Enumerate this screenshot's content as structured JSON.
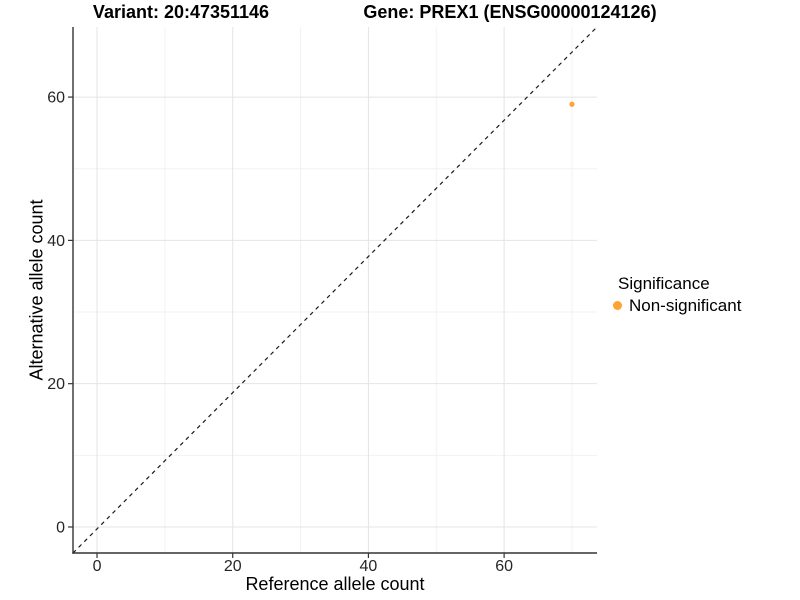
{
  "header": {
    "title_variant": "Variant: 20:47351146",
    "title_gene": "Gene: PREX1 (ENSG00000124126)"
  },
  "legend": {
    "title": "Significance",
    "items": [
      {
        "label": "Non-significant",
        "color": "#FFA333"
      }
    ]
  },
  "colors": {
    "background": "#FFFFFF",
    "grid_major": "#E4E4E4",
    "grid_minor": "#F2F2F2",
    "axis_line": "#333333",
    "tick_text": "#262626",
    "point_orange": "#FFA333",
    "reference_line": "#1A1A1A"
  },
  "chart_data": {
    "type": "scatter",
    "title_left": "Variant: 20:47351146",
    "title_right": "Gene: PREX1 (ENSG00000124126)",
    "xlabel": "Reference allele count",
    "ylabel": "Alternative allele count",
    "xlim": [
      -3.54,
      73.69
    ],
    "ylim": [
      -3.63,
      69.78
    ],
    "x_major_ticks": [
      0,
      20,
      40,
      60
    ],
    "x_minor_gridlines": [
      10,
      30,
      50,
      70
    ],
    "y_major_ticks": [
      0,
      20,
      40,
      60
    ],
    "y_minor_gridlines": [
      10,
      30,
      50
    ],
    "grid": "major+minor",
    "legend_position": "right",
    "series": [
      {
        "name": "Non-significant",
        "color": "#FFA333",
        "point_radius": 2.6,
        "points": [
          {
            "x": 70,
            "y": 59
          }
        ]
      }
    ],
    "reference_line": {
      "type": "identity",
      "slope": 1,
      "intercept": 0,
      "linetype": "dashed",
      "span": "panel-diagonal"
    }
  }
}
